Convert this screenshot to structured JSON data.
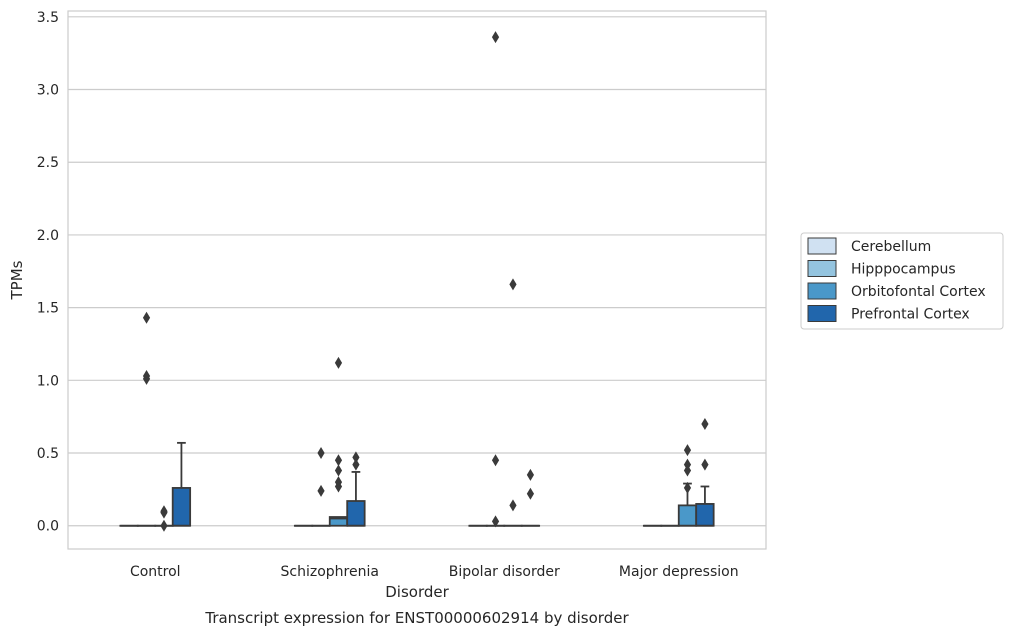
{
  "chart_data": {
    "type": "box",
    "title": "Transcript expression for ENST00000602914 by disorder",
    "xlabel": "Disorder",
    "ylabel": "TPMs",
    "ylim": [
      -0.16,
      3.54
    ],
    "yticks": [
      0.0,
      0.5,
      1.0,
      1.5,
      2.0,
      2.5,
      3.0,
      3.5
    ],
    "ytick_labels": [
      "0.0",
      "0.5",
      "1.0",
      "1.5",
      "2.0",
      "2.5",
      "3.0",
      "3.5"
    ],
    "grid": "horizontal",
    "legend_position": "right",
    "categories": [
      "Control",
      "Schizophrenia",
      "Bipolar disorder",
      "Major depression"
    ],
    "series": [
      {
        "name": "Cerebellum",
        "color": "#d0e1f2",
        "boxes": [
          {
            "q1": 0,
            "median": 0,
            "q3": 0,
            "whisker_low": 0,
            "whisker_high": 0,
            "outliers": []
          },
          {
            "q1": 0,
            "median": 0,
            "q3": 0,
            "whisker_low": 0,
            "whisker_high": 0,
            "outliers": []
          },
          {
            "q1": 0,
            "median": 0,
            "q3": 0,
            "whisker_low": 0,
            "whisker_high": 0,
            "outliers": []
          },
          {
            "q1": 0,
            "median": 0,
            "q3": 0,
            "whisker_low": 0,
            "whisker_high": 0,
            "outliers": []
          }
        ]
      },
      {
        "name": "Hipppocampus",
        "color": "#94c4df",
        "boxes": [
          {
            "q1": 0,
            "median": 0,
            "q3": 0,
            "whisker_low": 0,
            "whisker_high": 0,
            "outliers": [
              1.43,
              1.03,
              1.01
            ]
          },
          {
            "q1": 0,
            "median": 0,
            "q3": 0,
            "whisker_low": 0,
            "whisker_high": 0,
            "outliers": [
              0.5,
              0.24
            ]
          },
          {
            "q1": 0,
            "median": 0,
            "q3": 0,
            "whisker_low": 0,
            "whisker_high": 0,
            "outliers": [
              3.36,
              0.45,
              0.03
            ]
          },
          {
            "q1": 0,
            "median": 0,
            "q3": 0,
            "whisker_low": 0,
            "whisker_high": 0,
            "outliers": []
          }
        ]
      },
      {
        "name": "Orbitofontal Cortex",
        "color": "#4a98c9",
        "boxes": [
          {
            "q1": 0,
            "median": 0,
            "q3": 0,
            "whisker_low": 0,
            "whisker_high": 0,
            "outliers": [
              0.1,
              0.09,
              0.0
            ]
          },
          {
            "q1": 0,
            "median": 0.05,
            "q3": 0.06,
            "whisker_low": 0,
            "whisker_high": 0.06,
            "outliers": [
              1.12,
              0.45,
              0.38,
              0.3,
              0.27
            ]
          },
          {
            "q1": 0,
            "median": 0,
            "q3": 0,
            "whisker_low": 0,
            "whisker_high": 0,
            "outliers": [
              1.66,
              0.14
            ]
          },
          {
            "q1": 0,
            "median": 0,
            "q3": 0.14,
            "whisker_low": 0,
            "whisker_high": 0.29,
            "outliers": [
              0.52,
              0.42,
              0.38,
              0.26
            ]
          }
        ]
      },
      {
        "name": "Prefrontal Cortex",
        "color": "#2166ac",
        "boxes": [
          {
            "q1": 0,
            "median": 0,
            "q3": 0.26,
            "whisker_low": 0,
            "whisker_high": 0.57,
            "outliers": []
          },
          {
            "q1": 0,
            "median": 0,
            "q3": 0.17,
            "whisker_low": 0,
            "whisker_high": 0.37,
            "outliers": [
              0.47,
              0.42
            ]
          },
          {
            "q1": 0,
            "median": 0,
            "q3": 0,
            "whisker_low": 0,
            "whisker_high": 0,
            "outliers": [
              0.35,
              0.22
            ]
          },
          {
            "q1": 0,
            "median": 0,
            "q3": 0.15,
            "whisker_low": 0,
            "whisker_high": 0.27,
            "outliers": [
              0.7,
              0.42
            ]
          }
        ]
      }
    ]
  }
}
